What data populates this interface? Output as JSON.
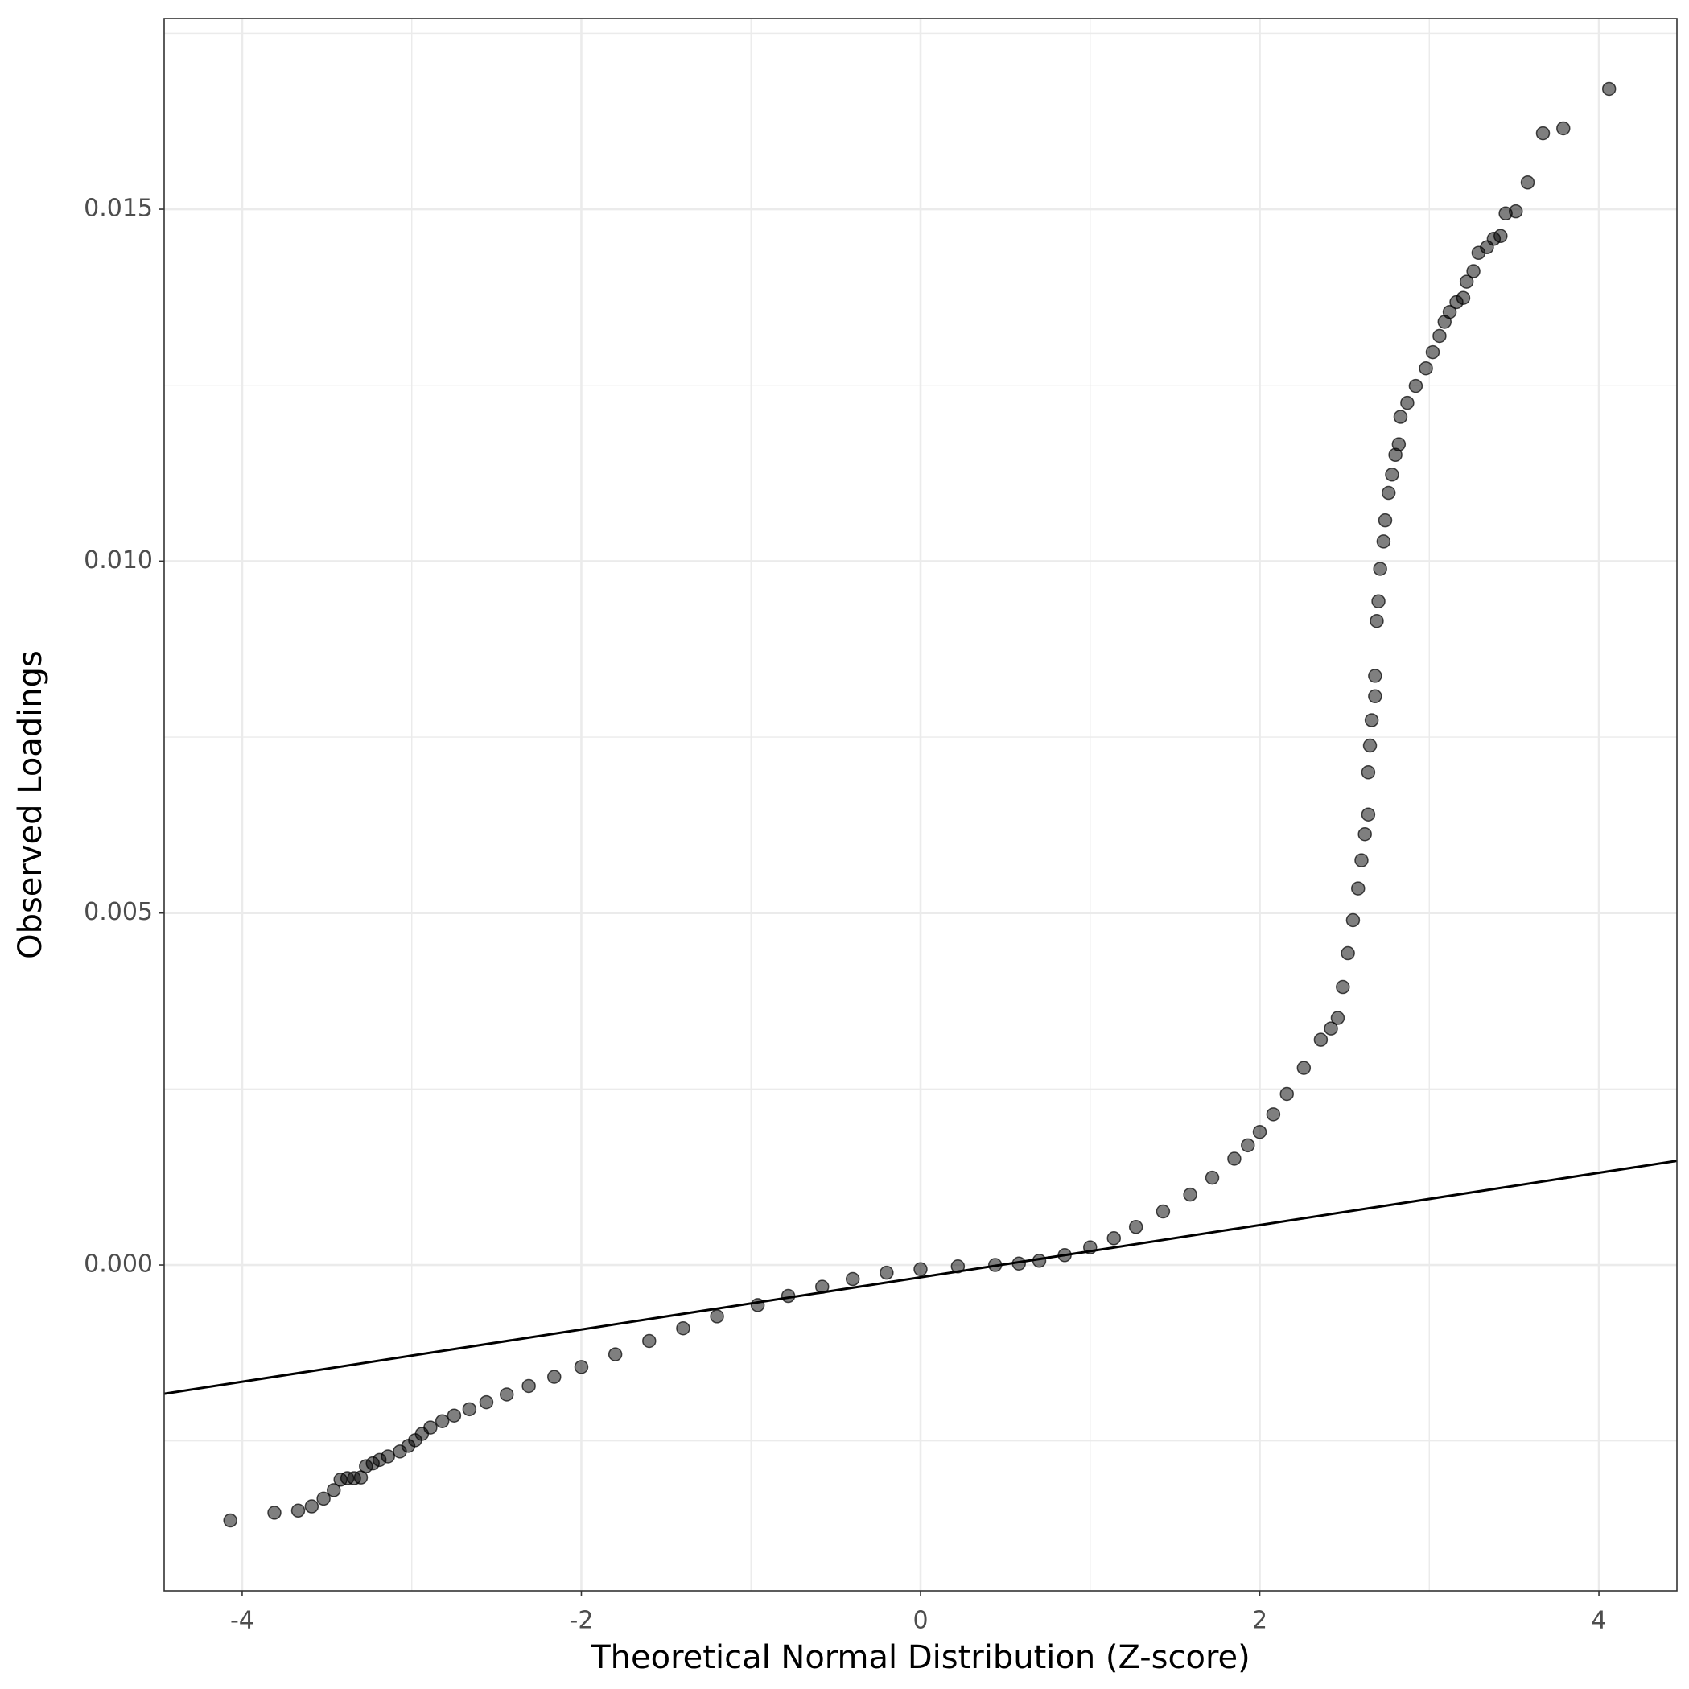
{
  "chart_data": {
    "type": "scatter",
    "xlabel": "Theoretical Normal Distribution (Z-score)",
    "ylabel": "Observed Loadings",
    "xlim": [
      -4.46,
      4.46
    ],
    "ylim": [
      -0.00463,
      0.01771
    ],
    "xticks": [
      -4,
      -2,
      0,
      2,
      4
    ],
    "yticks": [
      {
        "value": 0,
        "label": "0.000"
      },
      {
        "value": 0.005,
        "label": "0.005"
      },
      {
        "value": 0.01,
        "label": "0.010"
      },
      {
        "value": 0.015,
        "label": "0.015"
      }
    ],
    "grid": true,
    "color": "#000000",
    "x": [
      -4.07,
      -3.81,
      -3.67,
      -3.59,
      -3.52,
      -3.46,
      -3.42,
      -3.38,
      -3.34,
      -3.3,
      -3.27,
      -3.23,
      -3.19,
      -3.14,
      -3.07,
      -3.02,
      -2.98,
      -2.94,
      -2.89,
      -2.82,
      -2.75,
      -2.66,
      -2.56,
      -2.44,
      -2.31,
      -2.16,
      -2.0,
      -1.8,
      -1.6,
      -1.4,
      -1.2,
      -0.96,
      -0.78,
      -0.58,
      -0.4,
      -0.2,
      0.0,
      0.22,
      0.44,
      0.58,
      0.7,
      0.85,
      1.0,
      1.14,
      1.27,
      1.43,
      1.59,
      1.72,
      1.85,
      1.93,
      2.0,
      2.08,
      2.16,
      2.26,
      2.36,
      2.42,
      2.46,
      2.49,
      2.52,
      2.55,
      2.58,
      2.6,
      2.62,
      2.64,
      2.64,
      2.65,
      2.66,
      2.68,
      2.68,
      2.69,
      2.7,
      2.71,
      2.73,
      2.74,
      2.76,
      2.78,
      2.8,
      2.82,
      2.83,
      2.87,
      2.92,
      2.98,
      3.02,
      3.06,
      3.09,
      3.12,
      3.16,
      3.2,
      3.22,
      3.26,
      3.29,
      3.34,
      3.38,
      3.42,
      3.45,
      3.51,
      3.58,
      3.67,
      3.79,
      4.06
    ],
    "values": [
      -0.00363,
      -0.00352,
      -0.00349,
      -0.00343,
      -0.00332,
      -0.0032,
      -0.00305,
      -0.00303,
      -0.00303,
      -0.00302,
      -0.00286,
      -0.00282,
      -0.00277,
      -0.00272,
      -0.00265,
      -0.00257,
      -0.00249,
      -0.0024,
      -0.00231,
      -0.00222,
      -0.00214,
      -0.00205,
      -0.00195,
      -0.00184,
      -0.00172,
      -0.00159,
      -0.00145,
      -0.00127,
      -0.00108,
      -0.0009,
      -0.00073,
      -0.00057,
      -0.00044,
      -0.00031,
      -0.0002,
      -0.00011,
      -6e-05,
      -2e-05,
      0,
      2e-05,
      6e-05,
      0.00014,
      0.00025,
      0.00038,
      0.00054,
      0.00076,
      0.001,
      0.00124,
      0.00151,
      0.0017,
      0.00189,
      0.00214,
      0.00243,
      0.0028,
      0.0032,
      0.00336,
      0.00351,
      0.00395,
      0.00443,
      0.0049,
      0.00535,
      0.00575,
      0.00612,
      0.0064,
      0.007,
      0.00738,
      0.00774,
      0.00808,
      0.00837,
      0.00915,
      0.00943,
      0.00989,
      0.01028,
      0.01058,
      0.01097,
      0.01123,
      0.01151,
      0.01166,
      0.01205,
      0.01225,
      0.01249,
      0.01274,
      0.01297,
      0.0132,
      0.0134,
      0.01354,
      0.01368,
      0.01374,
      0.01397,
      0.01412,
      0.01438,
      0.01446,
      0.01458,
      0.01462,
      0.01494,
      0.01497,
      0.01538,
      0.01608,
      0.01615,
      0.01671
    ],
    "reference_line": {
      "x": [
        -4.46,
        4.46
      ],
      "values": [
        -0.00183,
        0.00148
      ],
      "color": "#000000"
    }
  }
}
